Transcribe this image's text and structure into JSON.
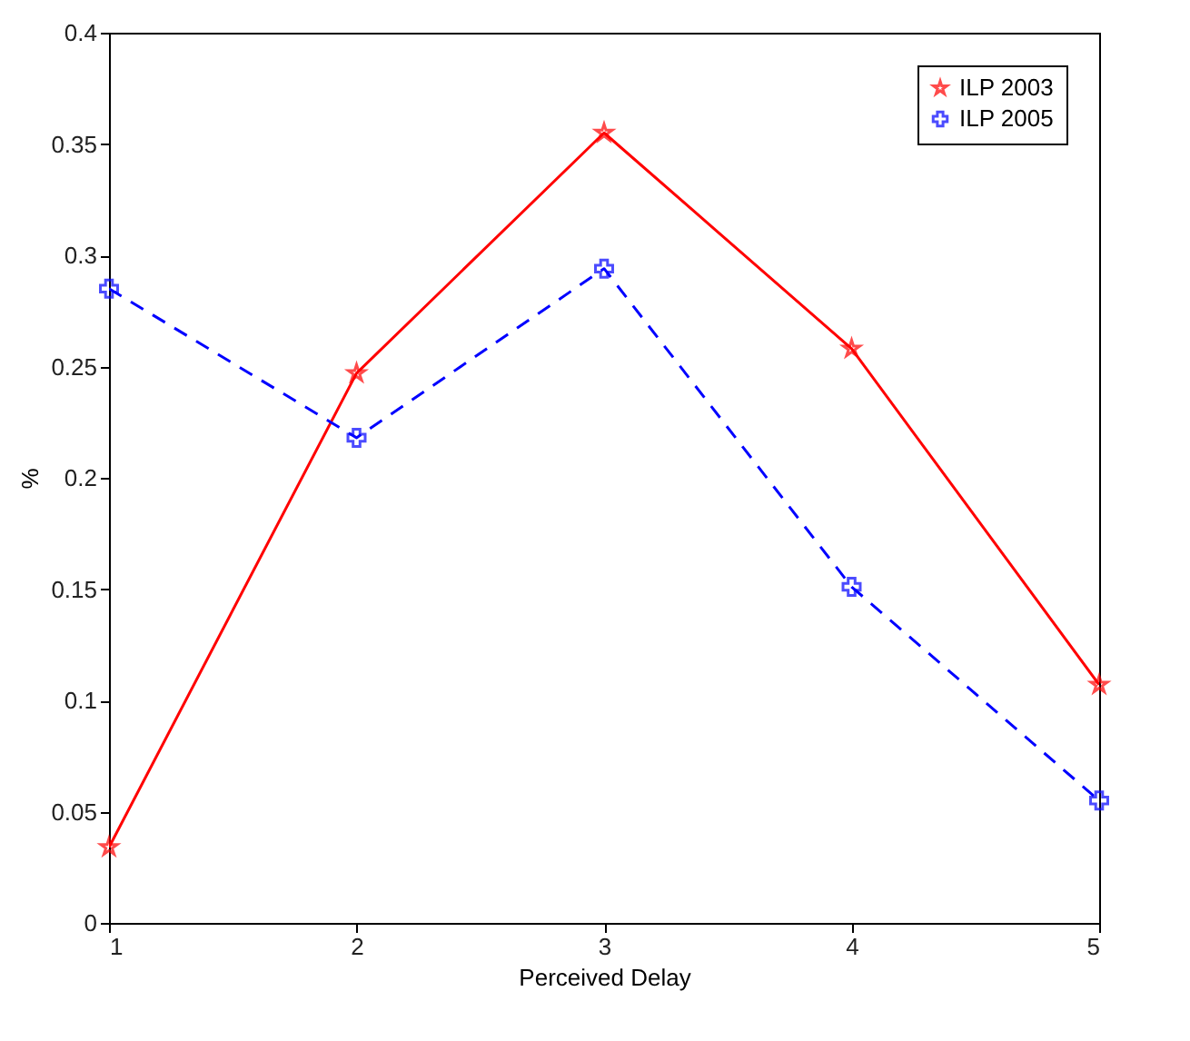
{
  "chart_data": {
    "type": "line",
    "xlabel": "Perceived Delay",
    "ylabel": "%",
    "x": [
      1,
      2,
      3,
      4,
      5
    ],
    "xlim": [
      1,
      5
    ],
    "xticks": [
      1,
      2,
      3,
      4,
      5
    ],
    "ylim": [
      0,
      0.4
    ],
    "yticks": [
      0,
      0.05,
      0.1,
      0.15,
      0.2,
      0.25,
      0.3,
      0.35,
      0.4
    ],
    "legend": "top right",
    "grid": false,
    "series": [
      {
        "name": "ILP 2003",
        "color": "#ff0000",
        "values": [
          0.034,
          0.247,
          0.355,
          0.258,
          0.107
        ],
        "marker": "star",
        "line_style": "solid"
      },
      {
        "name": "ILP 2005",
        "color": "#0000ff",
        "values": [
          0.285,
          0.218,
          0.294,
          0.151,
          0.055
        ],
        "marker": "cross",
        "line_style": "dashed"
      }
    ]
  }
}
